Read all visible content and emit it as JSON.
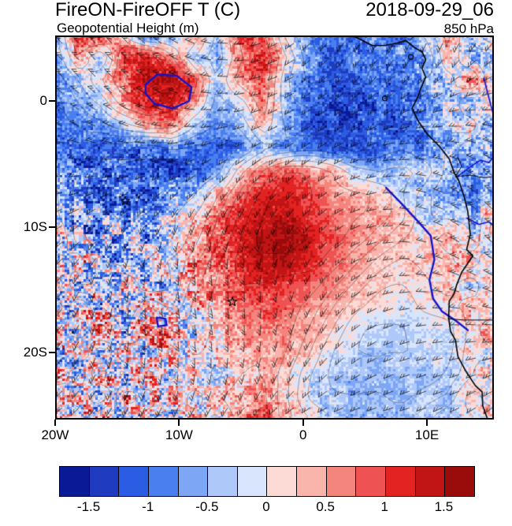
{
  "header": {
    "title": "FireON-FireOFF T (C)",
    "datetime": "2018-09-29_06",
    "subtitle": "Geopotential Height (m)",
    "level": "850 hPa"
  },
  "axes": {
    "y_ticks": [
      {
        "label": "0",
        "lat": 0
      },
      {
        "label": "10S",
        "lat": -10
      },
      {
        "label": "20S",
        "lat": -20
      }
    ],
    "x_ticks": [
      {
        "label": "20W",
        "lon": -20
      },
      {
        "label": "10W",
        "lon": -10
      },
      {
        "label": "0",
        "lon": 0
      },
      {
        "label": "10E",
        "lon": 10
      }
    ]
  },
  "colorbar": {
    "n_cells": 14,
    "colors": [
      "#0a1a96",
      "#1f3bc0",
      "#2b5ce4",
      "#4a7ff0",
      "#7da6f5",
      "#aec8fa",
      "#d8e5fc",
      "#fcdbd7",
      "#f9b4ac",
      "#f4857c",
      "#ee5252",
      "#e32222",
      "#c11414",
      "#9a0c0c"
    ],
    "bin_min": -1.75,
    "bin_step": 0.25,
    "labels": [
      {
        "text": "-1.5",
        "boundary": 1
      },
      {
        "text": "-1",
        "boundary": 3
      },
      {
        "text": "-0.5",
        "boundary": 5
      },
      {
        "text": "0",
        "boundary": 7
      },
      {
        "text": "0.5",
        "boundary": 9
      },
      {
        "text": "1",
        "boundary": 11
      },
      {
        "text": "1.5",
        "boundary": 13
      }
    ]
  },
  "chart_data": {
    "type": "heatmap",
    "title": "FireON-FireOFF T (C)",
    "subtitle": "Geopotential Height (m)",
    "valid_time": "2018-09-29_06",
    "level": "850 hPa",
    "units": "C",
    "extent": {
      "lon_min": -20,
      "lon_max": 15.4,
      "lat_min": -25.3,
      "lat_max": 5.2
    },
    "value_range": [
      -1.5,
      1.5
    ],
    "anomaly_grid": [
      [
        -0.4,
        0.8,
        0.9,
        0.3,
        -0.8,
        -0.5,
        0.4,
        -0.3,
        0.9,
        1.0,
        -0.2,
        -0.6,
        -0.9,
        -1.0,
        -0.7,
        -0.9,
        -0.3,
        0.5,
        -0.6,
        0.4
      ],
      [
        -0.6,
        0.4,
        -0.5,
        0.9,
        1.2,
        0.6,
        -0.2,
        -0.5,
        0.5,
        1.1,
        0.2,
        -0.7,
        -1.1,
        -0.8,
        -1.0,
        -0.6,
        -0.8,
        0.3,
        -0.5,
        -0.7
      ],
      [
        -0.8,
        -0.3,
        0.2,
        0.8,
        1.4,
        1.6,
        0.9,
        -0.4,
        0.6,
        1.0,
        -0.3,
        -0.9,
        -1.2,
        -1.3,
        -0.9,
        -1.1,
        -0.5,
        -0.4,
        0.6,
        -0.3
      ],
      [
        -0.9,
        -0.6,
        -0.4,
        0.5,
        1.2,
        1.3,
        0.5,
        -0.6,
        -0.2,
        0.8,
        -0.5,
        -1.0,
        -1.3,
        -1.1,
        -1.2,
        -0.8,
        -0.9,
        -0.2,
        -0.7,
        0.5
      ],
      [
        -0.7,
        -0.9,
        -0.8,
        -0.2,
        0.6,
        0.7,
        -0.3,
        -0.8,
        -0.6,
        0.4,
        -0.6,
        -1.2,
        -1.4,
        -1.3,
        -1.0,
        -1.2,
        -0.7,
        -0.6,
        0.3,
        -0.6
      ],
      [
        -0.8,
        -1.0,
        -1.2,
        -0.9,
        -1.1,
        -0.8,
        -1.0,
        -1.2,
        -0.9,
        -0.5,
        -0.8,
        -1.0,
        -1.2,
        -1.4,
        -1.1,
        -0.9,
        -1.0,
        -0.5,
        -0.8,
        -0.4
      ],
      [
        -0.6,
        -0.9,
        -1.1,
        -1.2,
        -1.0,
        -1.3,
        -1.1,
        -0.8,
        0.2,
        0.7,
        0.9,
        0.6,
        0.3,
        -0.3,
        -0.6,
        -0.4,
        -0.2,
        -0.5,
        -0.8,
        -0.6
      ],
      [
        -0.5,
        -0.8,
        -1.0,
        -0.9,
        -1.1,
        -0.7,
        -0.4,
        0.3,
        0.8,
        1.1,
        1.2,
        0.9,
        0.6,
        0.4,
        0.2,
        -0.2,
        -0.4,
        -0.6,
        -0.9,
        -0.7
      ],
      [
        -0.4,
        -0.6,
        -0.5,
        -0.8,
        -0.6,
        -0.3,
        0.2,
        0.7,
        1.1,
        1.3,
        1.4,
        1.1,
        0.8,
        0.5,
        0.4,
        0.3,
        -0.2,
        -0.3,
        -0.5,
        0.4
      ],
      [
        0.3,
        -0.5,
        -0.7,
        -0.4,
        -0.6,
        -0.2,
        0.4,
        0.8,
        1.2,
        1.5,
        1.6,
        1.3,
        0.9,
        0.6,
        0.4,
        0.3,
        0.2,
        0.4,
        -0.3,
        0.6
      ],
      [
        -0.6,
        0.4,
        -0.5,
        -0.8,
        -0.3,
        0.2,
        0.5,
        0.9,
        1.2,
        1.4,
        1.4,
        1.2,
        0.8,
        0.5,
        0.3,
        0.2,
        0.3,
        0.2,
        0.5,
        -0.3
      ],
      [
        0.5,
        -0.6,
        -0.4,
        0.3,
        -0.5,
        -0.2,
        0.4,
        0.7,
        1.0,
        1.1,
        1.0,
        0.9,
        0.6,
        0.4,
        0.2,
        0.1,
        0.2,
        0.3,
        -0.2,
        0.4
      ],
      [
        -0.7,
        0.5,
        -0.3,
        -0.6,
        0.4,
        -0.4,
        0.2,
        0.5,
        0.8,
        0.9,
        0.8,
        0.6,
        0.4,
        0.2,
        0.1,
        -0.1,
        0.1,
        0.2,
        0.4,
        -0.2
      ],
      [
        0.6,
        -0.5,
        0.8,
        -0.4,
        0.9,
        0.3,
        -0.3,
        0.3,
        0.6,
        0.7,
        0.6,
        0.4,
        0.2,
        -0.1,
        -0.2,
        -0.3,
        -0.2,
        -0.1,
        0.3,
        0.5
      ],
      [
        -0.5,
        0.7,
        -0.6,
        0.9,
        -0.3,
        0.5,
        -0.2,
        0.2,
        0.4,
        0.5,
        0.4,
        0.2,
        -0.1,
        -0.3,
        -0.4,
        -0.4,
        -0.3,
        -0.2,
        0.2,
        -0.3
      ],
      [
        0.4,
        -0.6,
        0.8,
        -0.5,
        0.6,
        -0.4,
        0.3,
        -0.2,
        0.3,
        0.4,
        0.2,
        -0.1,
        -0.3,
        -0.4,
        -0.5,
        -0.4,
        -0.4,
        -0.3,
        -0.1,
        0.3
      ],
      [
        -0.6,
        0.5,
        -0.7,
        0.6,
        -0.4,
        0.4,
        -0.3,
        0.2,
        0.4,
        0.6,
        0.3,
        -0.2,
        -0.4,
        -0.5,
        -0.4,
        -0.5,
        -0.3,
        -0.4,
        0.2,
        -0.2
      ],
      [
        0.5,
        -0.4,
        0.6,
        -0.5,
        0.3,
        -0.3,
        0.2,
        -0.2,
        0.5,
        0.9,
        0.6,
        0.2,
        -0.3,
        -0.5,
        -0.5,
        -0.4,
        -0.4,
        -0.2,
        -0.3,
        0.4
      ]
    ],
    "noise_amp_grid": [
      [
        0.5,
        0.5,
        0.4,
        0.3,
        0.4,
        0.4,
        0.4,
        0.4,
        0.5,
        0.6
      ],
      [
        0.4,
        0.4,
        0.3,
        0.3,
        0.4,
        0.4,
        0.4,
        0.4,
        0.5,
        0.6
      ],
      [
        0.4,
        0.35,
        0.3,
        0.3,
        0.3,
        0.3,
        0.35,
        0.4,
        0.5,
        0.6
      ],
      [
        0.7,
        0.7,
        0.6,
        0.4,
        0.25,
        0.2,
        0.25,
        0.3,
        0.5,
        0.6
      ],
      [
        0.9,
        0.9,
        0.8,
        0.5,
        0.2,
        0.2,
        0.2,
        0.3,
        0.4,
        0.6
      ],
      [
        1.0,
        1.0,
        0.9,
        0.6,
        0.25,
        0.2,
        0.2,
        0.25,
        0.4,
        0.6
      ],
      [
        1.0,
        1.1,
        1.0,
        0.7,
        0.3,
        0.25,
        0.2,
        0.2,
        0.3,
        0.5
      ],
      [
        1.0,
        1.0,
        1.0,
        0.7,
        0.4,
        0.3,
        0.25,
        0.2,
        0.3,
        0.5
      ],
      [
        1.0,
        1.0,
        0.9,
        0.7,
        0.5,
        0.4,
        0.3,
        0.25,
        0.3,
        0.5
      ]
    ],
    "markers": [
      {
        "name": "ascension-star",
        "lon": -14.35,
        "lat": -7.95
      },
      {
        "name": "st-helena-star",
        "lon": -5.7,
        "lat": -15.95
      }
    ],
    "coastline": [
      [
        4.0,
        5.2
      ],
      [
        4.6,
        4.9
      ],
      [
        5.6,
        4.4
      ],
      [
        6.6,
        4.4
      ],
      [
        7.6,
        4.6
      ],
      [
        8.3,
        4.8
      ],
      [
        8.9,
        4.3
      ],
      [
        9.6,
        3.9
      ],
      [
        9.9,
        3.3
      ],
      [
        9.6,
        2.6
      ],
      [
        9.9,
        1.9
      ],
      [
        9.5,
        1.0
      ],
      [
        9.3,
        0.4
      ],
      [
        8.8,
        -0.6
      ],
      [
        9.3,
        -1.6
      ],
      [
        10.0,
        -2.6
      ],
      [
        11.0,
        -3.6
      ],
      [
        11.8,
        -4.6
      ],
      [
        12.2,
        -5.7
      ],
      [
        12.6,
        -6.4
      ],
      [
        13.0,
        -7.6
      ],
      [
        13.3,
        -8.8
      ],
      [
        13.5,
        -10.6
      ],
      [
        13.2,
        -11.8
      ],
      [
        13.7,
        -12.3
      ],
      [
        12.8,
        -13.6
      ],
      [
        12.4,
        -14.6
      ],
      [
        12.2,
        -15.3
      ],
      [
        11.8,
        -15.9
      ],
      [
        11.75,
        -17.2
      ],
      [
        11.9,
        -18.3
      ],
      [
        12.3,
        -19.0
      ],
      [
        12.5,
        -20.3
      ],
      [
        13.1,
        -21.4
      ],
      [
        13.9,
        -22.6
      ],
      [
        14.45,
        -23.1
      ],
      [
        14.5,
        -24.2
      ],
      [
        14.9,
        -25.3
      ]
    ],
    "islands": [
      {
        "name": "bioko",
        "lon": 8.7,
        "lat": 3.5
      },
      {
        "name": "sao-tome",
        "lon": 6.6,
        "lat": 0.2
      }
    ],
    "borders": [
      [
        [
          12.3,
          -6.0
        ],
        [
          13.5,
          -5.9
        ],
        [
          14.6,
          -6.1
        ],
        [
          15.4,
          -6.0
        ]
      ],
      [
        [
          11.7,
          -17.3
        ],
        [
          13.0,
          -17.4
        ],
        [
          14.2,
          -17.4
        ],
        [
          15.4,
          -17.4
        ]
      ],
      [
        [
          12.5,
          -4.5
        ],
        [
          12.8,
          -5.2
        ],
        [
          12.3,
          -6.0
        ]
      ],
      [
        [
          8.6,
          4.8
        ],
        [
          9.0,
          5.2
        ]
      ]
    ],
    "rivers": [
      [
        [
          12.4,
          -6.05
        ],
        [
          13.4,
          -5.3
        ],
        [
          14.3,
          -4.7
        ],
        [
          15.0,
          -4.9
        ],
        [
          15.4,
          -4.4
        ]
      ],
      [
        [
          13.2,
          -9.3
        ],
        [
          14.2,
          -9.8
        ],
        [
          15.0,
          -9.6
        ],
        [
          15.4,
          -9.9
        ]
      ],
      [
        [
          14.6,
          1.8
        ],
        [
          14.9,
          0.6
        ],
        [
          15.2,
          -0.5
        ],
        [
          15.4,
          -1.2
        ]
      ]
    ],
    "blue_height_contours": [
      {
        "closed": false,
        "points": [
          [
            6.7,
            -6.9
          ],
          [
            7.9,
            -8.1
          ],
          [
            9.4,
            -9.7
          ],
          [
            10.3,
            -10.7
          ],
          [
            10.6,
            -12.6
          ],
          [
            10.2,
            -14.2
          ],
          [
            10.5,
            -15.7
          ],
          [
            11.2,
            -16.7
          ],
          [
            12.4,
            -17.5
          ],
          [
            13.3,
            -18.2
          ]
        ]
      },
      {
        "closed": true,
        "points": [
          [
            -12.7,
            1.3
          ],
          [
            -11.75,
            2.1
          ],
          [
            -10.2,
            2.0
          ],
          [
            -9.0,
            1.1
          ],
          [
            -9.2,
            0.0
          ],
          [
            -10.5,
            -0.6
          ],
          [
            -12.0,
            -0.2
          ],
          [
            -12.7,
            0.6
          ]
        ]
      },
      {
        "closed": true,
        "points": [
          [
            -11.8,
            -17.2
          ],
          [
            -11.1,
            -17.3
          ],
          [
            -11.0,
            -17.8
          ],
          [
            -11.7,
            -17.9
          ]
        ]
      }
    ]
  }
}
